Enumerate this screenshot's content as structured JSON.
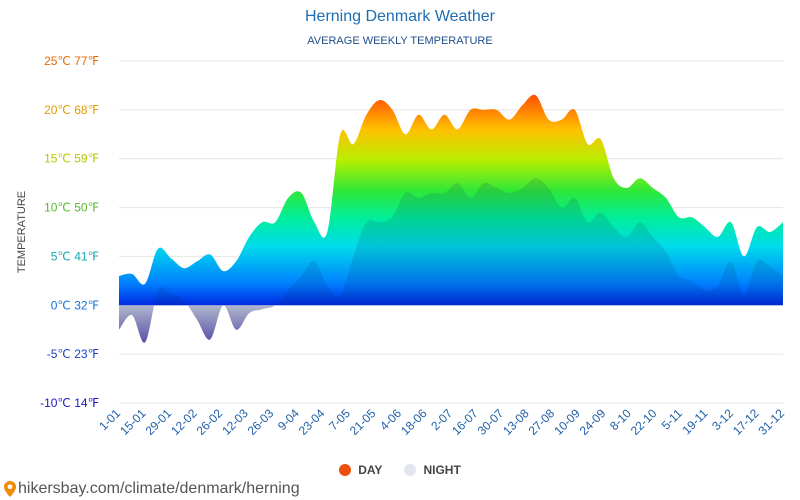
{
  "chart_data": {
    "type": "area",
    "title": "Herning Denmark Weather",
    "subtitle": "AVERAGE WEEKLY TEMPERATURE",
    "ylabel": "TEMPERATURE",
    "ylim": [
      -10,
      25
    ],
    "y_ticks": [
      {
        "value": 25,
        "label": "25℃ 77℉",
        "color": "#e46a00"
      },
      {
        "value": 20,
        "label": "20℃ 68℉",
        "color": "#e59a00"
      },
      {
        "value": 15,
        "label": "15℃ 59℉",
        "color": "#b7c800"
      },
      {
        "value": 10,
        "label": "10℃ 50℉",
        "color": "#58b82a"
      },
      {
        "value": 5,
        "label": "5℃ 41℉",
        "color": "#14a9b5"
      },
      {
        "value": 0,
        "label": "0℃ 32℉",
        "color": "#1673d6"
      },
      {
        "value": -5,
        "label": "-5℃ 23℉",
        "color": "#1a44c4"
      },
      {
        "value": -10,
        "label": "-10℃ 14℉",
        "color": "#1a17c7"
      }
    ],
    "x_tick_labels": [
      "1-01",
      "15-01",
      "29-01",
      "12-02",
      "26-02",
      "12-03",
      "26-03",
      "9-04",
      "23-04",
      "7-05",
      "21-05",
      "4-06",
      "18-06",
      "2-07",
      "16-07",
      "30-07",
      "13-08",
      "27-08",
      "10-09",
      "24-09",
      "8-10",
      "22-10",
      "5-11",
      "19-11",
      "3-12",
      "17-12",
      "31-12"
    ],
    "series": [
      {
        "name": "DAY",
        "color": "#ee4f0e",
        "values": [
          3.0,
          3.2,
          2.2,
          5.8,
          4.8,
          3.8,
          4.5,
          5.2,
          3.5,
          4.5,
          7.0,
          8.5,
          8.5,
          11.0,
          11.5,
          8.5,
          7.5,
          17.5,
          16.5,
          19.5,
          21.0,
          20.0,
          17.5,
          19.5,
          18.0,
          19.5,
          18.0,
          20.0,
          20.0,
          20.0,
          19.0,
          20.5,
          21.5,
          19.0,
          19.0,
          20.0,
          16.5,
          17.0,
          13.0,
          12.0,
          13.0,
          12.0,
          11.0,
          9.0,
          9.0,
          8.0,
          7.0,
          8.5,
          5.0,
          8.0,
          7.5,
          8.5
        ]
      },
      {
        "name": "NIGHT",
        "color": "#e3e6ef",
        "values": [
          -2.5,
          -1.0,
          -3.8,
          1.5,
          1.2,
          0.5,
          -1.5,
          -3.5,
          0.0,
          -2.5,
          -0.8,
          -0.4,
          0.0,
          1.5,
          3.0,
          4.5,
          2.0,
          1.0,
          5.0,
          8.5,
          8.5,
          9.0,
          11.5,
          11.0,
          11.5,
          11.5,
          12.5,
          11.0,
          12.5,
          12.0,
          11.5,
          12.0,
          13.0,
          12.0,
          10.0,
          11.0,
          8.5,
          9.5,
          8.0,
          7.0,
          8.5,
          7.0,
          5.5,
          3.0,
          2.5,
          1.5,
          2.0,
          4.5,
          1.0,
          4.5,
          4.0,
          3.0
        ]
      }
    ],
    "legend_position": "bottom-center",
    "grid": true
  },
  "source_text": "hikersbay.com/climate/denmark/herning",
  "source_icon": "map-pin-icon"
}
